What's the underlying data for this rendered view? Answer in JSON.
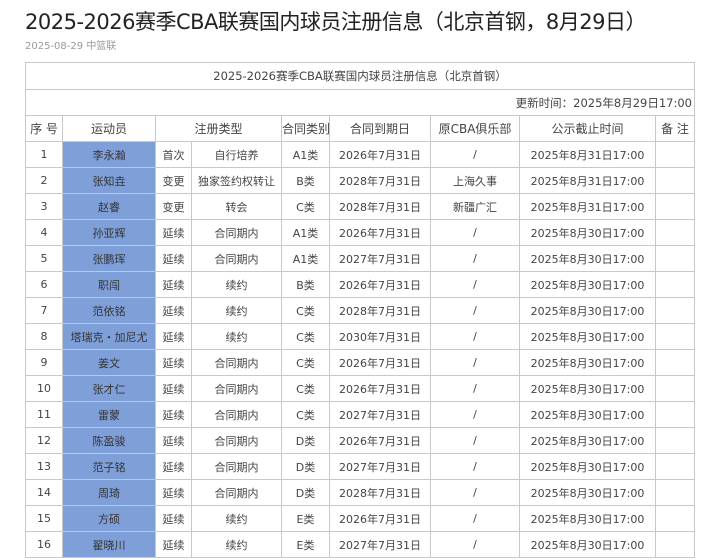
{
  "article": {
    "title": "2025-2026赛季CBA联赛国内球员注册信息（北京首钢，8月29日）",
    "date": "2025-08-29",
    "source": "中篮联"
  },
  "table": {
    "caption": "2025-2026赛季CBA联赛国内球员注册信息（北京首钢）",
    "update_time": "更新时间：2025年8月29日17:00",
    "headers": [
      "序 号",
      "运动员",
      "注册类型",
      "合同类别",
      "合同到期日",
      "原CBA俱乐部",
      "公示截止时间",
      "备 注"
    ],
    "highlight_color": "#7f9fd8",
    "rows": [
      {
        "no": "1",
        "name": "李永瀚",
        "reg": "首次",
        "reg_detail": "自行培养",
        "cat": "A1类",
        "expire": "2026年7月31日",
        "club": "/",
        "deadline": "2025年8月31日17:00",
        "note": ""
      },
      {
        "no": "2",
        "name": "张知垚",
        "reg": "变更",
        "reg_detail": "独家签约权转让",
        "cat": "B类",
        "expire": "2028年7月31日",
        "club": "上海久事",
        "deadline": "2025年8月31日17:00",
        "note": ""
      },
      {
        "no": "3",
        "name": "赵睿",
        "reg": "变更",
        "reg_detail": "转会",
        "cat": "C类",
        "expire": "2028年7月31日",
        "club": "新疆广汇",
        "deadline": "2025年8月31日17:00",
        "note": ""
      },
      {
        "no": "4",
        "name": "孙亚辉",
        "reg": "延续",
        "reg_detail": "合同期内",
        "cat": "A1类",
        "expire": "2026年7月31日",
        "club": "/",
        "deadline": "2025年8月30日17:00",
        "note": ""
      },
      {
        "no": "5",
        "name": "张鹏珲",
        "reg": "延续",
        "reg_detail": "合同期内",
        "cat": "A1类",
        "expire": "2027年7月31日",
        "club": "/",
        "deadline": "2025年8月30日17:00",
        "note": ""
      },
      {
        "no": "6",
        "name": "职闯",
        "reg": "延续",
        "reg_detail": "续约",
        "cat": "B类",
        "expire": "2026年7月31日",
        "club": "/",
        "deadline": "2025年8月30日17:00",
        "note": ""
      },
      {
        "no": "7",
        "name": "范依铭",
        "reg": "延续",
        "reg_detail": "续约",
        "cat": "C类",
        "expire": "2028年7月31日",
        "club": "/",
        "deadline": "2025年8月30日17:00",
        "note": ""
      },
      {
        "no": "8",
        "name": "塔瑞克・加尼尤",
        "reg": "延续",
        "reg_detail": "续约",
        "cat": "C类",
        "expire": "2030年7月31日",
        "club": "/",
        "deadline": "2025年8月30日17:00",
        "note": ""
      },
      {
        "no": "9",
        "name": "姜文",
        "reg": "延续",
        "reg_detail": "合同期内",
        "cat": "C类",
        "expire": "2026年7月31日",
        "club": "/",
        "deadline": "2025年8月30日17:00",
        "note": ""
      },
      {
        "no": "10",
        "name": "张才仁",
        "reg": "延续",
        "reg_detail": "合同期内",
        "cat": "C类",
        "expire": "2026年7月31日",
        "club": "/",
        "deadline": "2025年8月30日17:00",
        "note": ""
      },
      {
        "no": "11",
        "name": "雷蒙",
        "reg": "延续",
        "reg_detail": "合同期内",
        "cat": "C类",
        "expire": "2027年7月31日",
        "club": "/",
        "deadline": "2025年8月30日17:00",
        "note": ""
      },
      {
        "no": "12",
        "name": "陈盈骏",
        "reg": "延续",
        "reg_detail": "合同期内",
        "cat": "D类",
        "expire": "2026年7月31日",
        "club": "/",
        "deadline": "2025年8月30日17:00",
        "note": ""
      },
      {
        "no": "13",
        "name": "范子铭",
        "reg": "延续",
        "reg_detail": "合同期内",
        "cat": "D类",
        "expire": "2027年7月31日",
        "club": "/",
        "deadline": "2025年8月30日17:00",
        "note": ""
      },
      {
        "no": "14",
        "name": "周琦",
        "reg": "延续",
        "reg_detail": "合同期内",
        "cat": "D类",
        "expire": "2028年7月31日",
        "club": "/",
        "deadline": "2025年8月30日17:00",
        "note": ""
      },
      {
        "no": "15",
        "name": "方硕",
        "reg": "延续",
        "reg_detail": "续约",
        "cat": "E类",
        "expire": "2026年7月31日",
        "club": "/",
        "deadline": "2025年8月30日17:00",
        "note": ""
      },
      {
        "no": "16",
        "name": "翟晓川",
        "reg": "延续",
        "reg_detail": "续约",
        "cat": "E类",
        "expire": "2027年7月31日",
        "club": "/",
        "deadline": "2025年8月30日17:00",
        "note": ""
      }
    ]
  }
}
